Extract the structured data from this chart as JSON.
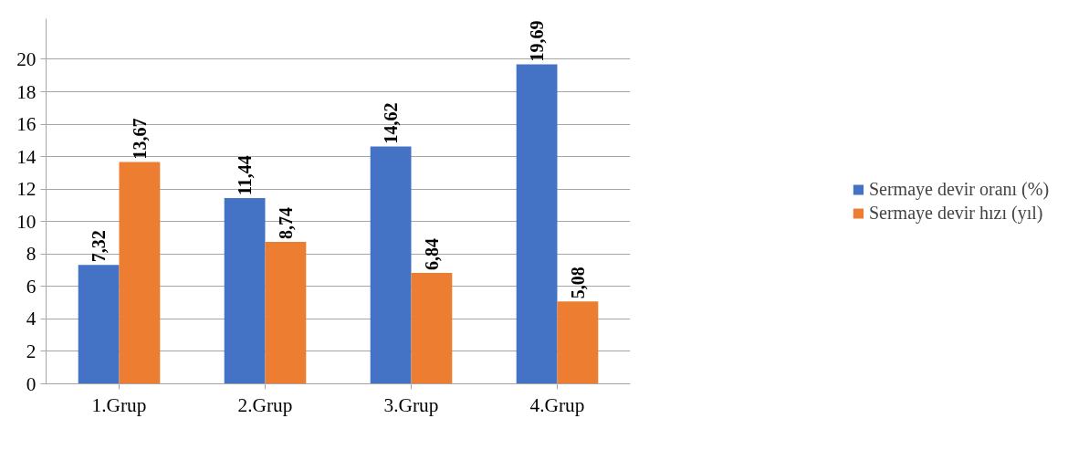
{
  "chart_data": {
    "type": "bar",
    "categories": [
      "1.Grup",
      "2.Grup",
      "3.Grup",
      "4.Grup"
    ],
    "series": [
      {
        "name": "Sermaye devir oranı (%)",
        "color": "#4472c4",
        "values": [
          7.32,
          11.44,
          14.62,
          19.69
        ],
        "value_labels": [
          "7,32",
          "11,44",
          "14,62",
          "19,69"
        ]
      },
      {
        "name": "Sermaye devir hızı (yıl)",
        "color": "#ed7d31",
        "values": [
          13.67,
          8.74,
          6.84,
          5.08
        ],
        "value_labels": [
          "13,67",
          "8,74",
          "6,84",
          "5,08"
        ]
      }
    ],
    "ylim": [
      0,
      22.5
    ],
    "yticks": [
      0,
      2,
      4,
      6,
      8,
      10,
      12,
      14,
      16,
      18,
      20
    ],
    "grid": "y",
    "legend": "right"
  }
}
